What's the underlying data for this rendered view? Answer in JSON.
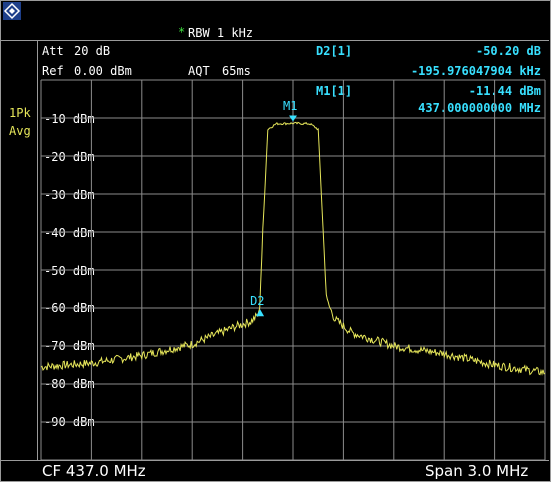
{
  "settings": {
    "rbw_star": "*",
    "rbw": "RBW 1 kHz",
    "att_label": "Att",
    "att_value": "20 dB",
    "ref_label": "Ref",
    "ref_value": "0.00 dBm",
    "aqt_label": "AQT",
    "aqt_value": "65ms"
  },
  "markers": {
    "d2_label": "D2[1]",
    "d2_level": "-50.20 dB",
    "d2_freq": "-195.976047904 kHz",
    "m1_label": "M1[1]",
    "m1_level": "-11.44 dBm",
    "m1_freq": "437.000000000 MHz",
    "m1_tag": "M1",
    "d2_tag": "D2"
  },
  "trace": {
    "detector": "1Pk",
    "mode": "Avg"
  },
  "y_axis": {
    "labels": [
      "-10 dBm",
      "-20 dBm",
      "-30 dBm",
      "-40 dBm",
      "-50 dBm",
      "-60 dBm",
      "-70 dBm",
      "-80 dBm",
      "-90 dBm"
    ]
  },
  "footer": {
    "center": "CF 437.0 MHz",
    "span": "Span 3.0 MHz"
  },
  "colors": {
    "trace": "#e6e65a",
    "marker": "#38e0ff",
    "grid": "#8c8c8c"
  },
  "chart_data": {
    "type": "line",
    "x_range_mhz": [
      435.5,
      438.5
    ],
    "y_range_dbm": [
      -100,
      0
    ],
    "grid": true,
    "series": [
      {
        "values_x_mhz": [
          435.5,
          435.8,
          436.1,
          436.4,
          436.65,
          436.75,
          436.8,
          436.82,
          436.85,
          436.9,
          437.0,
          437.1,
          437.15,
          437.18,
          437.2,
          437.25,
          437.35,
          437.6,
          437.9,
          438.2,
          438.5
        ],
        "values_y_dbm": [
          -75.5,
          -74.5,
          -72.5,
          -69.5,
          -65,
          -63.5,
          -61.5,
          -40,
          -13,
          -11.5,
          -11.4,
          -11.5,
          -13,
          -40,
          -58,
          -63,
          -66.5,
          -70,
          -72,
          -75,
          -77
        ]
      }
    ],
    "markers": [
      {
        "name": "M1",
        "x_mhz": 437.0,
        "y_dbm": -11.44
      },
      {
        "name": "D2",
        "x_mhz": 436.804,
        "y_dbm": -61.64
      }
    ]
  }
}
